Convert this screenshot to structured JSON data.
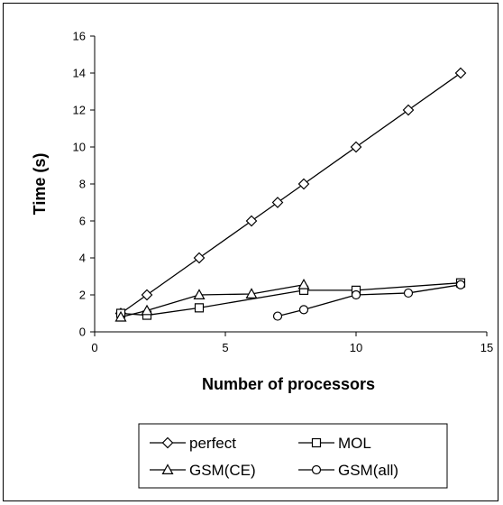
{
  "chart_data": {
    "type": "line",
    "xlabel": "Number of processors",
    "ylabel": "Time (s)",
    "xlim": [
      0,
      15
    ],
    "ylim": [
      0,
      16
    ],
    "xticks": [
      0,
      5,
      10,
      15
    ],
    "yticks": [
      0,
      2,
      4,
      6,
      8,
      10,
      12,
      14,
      16
    ],
    "grid": false,
    "legend_position": "bottom",
    "series": [
      {
        "name": "perfect",
        "marker": "diamond",
        "x": [
          1,
          2,
          4,
          6,
          7,
          8,
          10,
          12,
          14
        ],
        "y": [
          1,
          2,
          4,
          6,
          7,
          8,
          10,
          12,
          14
        ]
      },
      {
        "name": "MOL",
        "marker": "square",
        "x": [
          1,
          2,
          4,
          8,
          10,
          14
        ],
        "y": [
          1.0,
          0.9,
          1.3,
          2.25,
          2.25,
          2.65
        ]
      },
      {
        "name": "GSM(CE)",
        "marker": "triangle",
        "x": [
          1,
          2,
          4,
          6,
          8
        ],
        "y": [
          0.8,
          1.15,
          2.0,
          2.05,
          2.55
        ]
      },
      {
        "name": "GSM(all)",
        "marker": "circle",
        "x": [
          7,
          8,
          10,
          12,
          14
        ],
        "y": [
          0.85,
          1.2,
          2.0,
          2.1,
          2.55
        ]
      }
    ]
  }
}
